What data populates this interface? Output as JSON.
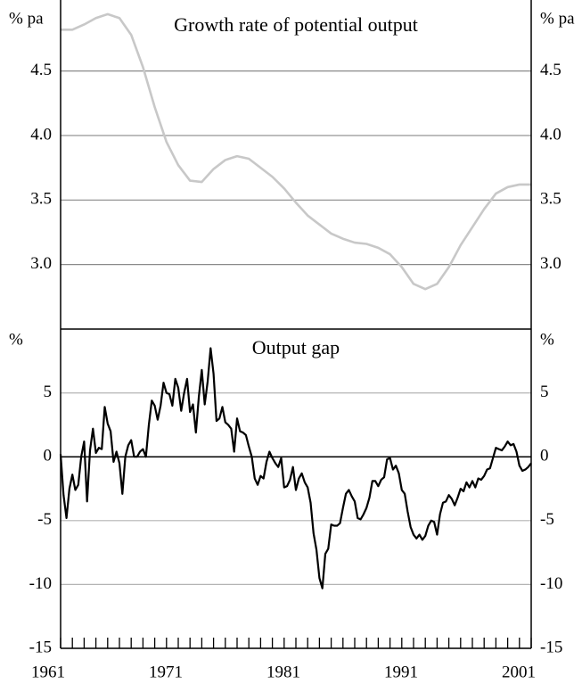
{
  "chart_data": [
    {
      "type": "line",
      "title": "Growth rate of potential output",
      "y_unit": "% pa",
      "color": "#c8c8c8",
      "x": [
        1961,
        1962,
        1963,
        1964,
        1965,
        1966,
        1967,
        1968,
        1969,
        1970,
        1971,
        1972,
        1973,
        1974,
        1975,
        1976,
        1977,
        1978,
        1979,
        1980,
        1981,
        1982,
        1983,
        1984,
        1985,
        1986,
        1987,
        1988,
        1989,
        1990,
        1991,
        1992,
        1993,
        1994,
        1995,
        1996,
        1997,
        1998,
        1999,
        2000,
        2001
      ],
      "values": [
        4.82,
        4.82,
        4.86,
        4.91,
        4.94,
        4.91,
        4.78,
        4.53,
        4.22,
        3.95,
        3.77,
        3.65,
        3.64,
        3.74,
        3.81,
        3.84,
        3.82,
        3.75,
        3.68,
        3.59,
        3.48,
        3.38,
        3.31,
        3.24,
        3.2,
        3.17,
        3.16,
        3.13,
        3.08,
        2.98,
        2.85,
        2.81,
        2.85,
        2.98,
        3.15,
        3.29,
        3.43,
        3.55,
        3.6,
        3.62,
        3.62
      ],
      "xlim": [
        1961,
        2001
      ],
      "ylim": [
        2.5,
        5.05
      ],
      "yticks": [
        {
          "value": 3,
          "label": "3.0"
        },
        {
          "value": 3.5,
          "label": "3.5"
        },
        {
          "value": 4,
          "label": "4.0"
        },
        {
          "value": 4.5,
          "label": "4.5"
        }
      ],
      "grid": true
    },
    {
      "type": "line",
      "title": "Output gap",
      "y_unit": "%",
      "color": "#000000",
      "x": [
        1961,
        1961.25,
        1961.5,
        1961.75,
        1962,
        1962.25,
        1962.5,
        1962.75,
        1963,
        1963.25,
        1963.5,
        1963.75,
        1964,
        1964.25,
        1964.5,
        1964.75,
        1965,
        1965.25,
        1965.5,
        1965.75,
        1966,
        1966.25,
        1966.5,
        1966.75,
        1967,
        1967.25,
        1967.5,
        1967.75,
        1968,
        1968.25,
        1968.5,
        1968.75,
        1969,
        1969.25,
        1969.5,
        1969.75,
        1970,
        1970.25,
        1970.5,
        1970.75,
        1971,
        1971.25,
        1971.5,
        1971.75,
        1972,
        1972.25,
        1972.5,
        1972.75,
        1973,
        1973.25,
        1973.5,
        1973.75,
        1974,
        1974.25,
        1974.5,
        1974.75,
        1975,
        1975.25,
        1975.5,
        1975.75,
        1976,
        1976.25,
        1976.5,
        1976.75,
        1977,
        1977.25,
        1977.5,
        1977.75,
        1978,
        1978.25,
        1978.5,
        1978.75,
        1979,
        1979.25,
        1979.5,
        1979.75,
        1980,
        1980.25,
        1980.5,
        1980.75,
        1981,
        1981.25,
        1981.5,
        1981.75,
        1982,
        1982.25,
        1982.5,
        1982.75,
        1983,
        1983.25,
        1983.5,
        1983.75,
        1984,
        1984.25,
        1984.5,
        1984.75,
        1985,
        1985.25,
        1985.5,
        1985.75,
        1986,
        1986.25,
        1986.5,
        1986.75,
        1987,
        1987.25,
        1987.5,
        1987.75,
        1988,
        1988.25,
        1988.5,
        1988.75,
        1989,
        1989.25,
        1989.5,
        1989.75,
        1990,
        1990.25,
        1990.5,
        1990.75,
        1991,
        1991.25,
        1991.5,
        1991.75,
        1992,
        1992.25,
        1992.5,
        1992.75,
        1993,
        1993.25,
        1993.5,
        1993.75,
        1994,
        1994.25,
        1994.5,
        1994.75,
        1995,
        1995.25,
        1995.5,
        1995.75,
        1996,
        1996.25,
        1996.5,
        1996.75,
        1997,
        1997.25,
        1997.5,
        1997.75,
        1998,
        1998.25,
        1998.5,
        1998.75,
        1999,
        1999.25,
        1999.5,
        1999.75,
        2000,
        2000.25,
        2000.5,
        2000.75,
        2001
      ],
      "values": [
        0.2,
        -3,
        -4.8,
        -2.5,
        -1.4,
        -2.6,
        -2.2,
        0,
        1.2,
        -3.5,
        0.5,
        2.2,
        0.3,
        0.7,
        0.6,
        3.9,
        2.6,
        2.0,
        -0.4,
        0.4,
        -0.5,
        -2.9,
        0,
        0.9,
        1.3,
        0,
        0,
        0.4,
        0.6,
        0,
        2.5,
        4.4,
        4.0,
        2.9,
        4.0,
        5.8,
        5.0,
        4.9,
        4.0,
        6.1,
        5.4,
        3.6,
        5.0,
        6.1,
        3.5,
        4.1,
        1.9,
        4.7,
        6.8,
        4.1,
        5.9,
        8.5,
        6.5,
        2.8,
        3.0,
        3.9,
        2.7,
        2.5,
        2.2,
        0.4,
        3.0,
        2.0,
        1.9,
        1.7,
        0.8,
        0,
        -1.7,
        -2.2,
        -1.5,
        -1.7,
        -0.4,
        0.4,
        -0.1,
        -0.5,
        -0.8,
        -0.1,
        -2.4,
        -2.3,
        -1.8,
        -0.8,
        -2.6,
        -1.7,
        -1.3,
        -2.0,
        -2.4,
        -3.6,
        -6,
        -7.3,
        -9.5,
        -10.3,
        -7.6,
        -7.2,
        -5.3,
        -5.4,
        -5.4,
        -5.2,
        -4,
        -2.9,
        -2.6,
        -3.1,
        -3.5,
        -4.8,
        -4.9,
        -4.5,
        -4.0,
        -3.2,
        -1.9,
        -1.9,
        -2.3,
        -1.8,
        -1.6,
        -0.2,
        -0.1,
        -1.0,
        -0.7,
        -1.3,
        -2.6,
        -2.9,
        -4.3,
        -5.5,
        -6.1,
        -6.4,
        -6.1,
        -6.5,
        -6.2,
        -5.4,
        -5.0,
        -5.1,
        -6.1,
        -4.5,
        -3.6,
        -3.5,
        -3.0,
        -3.3,
        -3.8,
        -3.2,
        -2.5,
        -2.7,
        -2.0,
        -2.4,
        -1.9,
        -2.4,
        -1.7,
        -1.8,
        -1.5,
        -1.0,
        -0.9,
        -0.1,
        0.7,
        0.6,
        0.5,
        0.8,
        1.2,
        0.9,
        1.0,
        0.4,
        -0.7,
        -1.1,
        -1.0,
        -0.8,
        -0.5
      ],
      "xlim": [
        1961,
        2001
      ],
      "ylim": [
        -15,
        10
      ],
      "xticks": [
        1961,
        1971,
        1981,
        1991,
        2001
      ],
      "xminor_ticks": [
        1962,
        1963,
        1964,
        1965,
        1966,
        1967,
        1968,
        1969,
        1970,
        1972,
        1973,
        1974,
        1975,
        1976,
        1977,
        1978,
        1979,
        1980,
        1982,
        1983,
        1984,
        1985,
        1986,
        1987,
        1988,
        1989,
        1990,
        1992,
        1993,
        1994,
        1995,
        1996,
        1997,
        1998,
        1999,
        2000
      ],
      "yticks": [
        -15,
        -10,
        -5,
        0,
        5
      ],
      "grid": true,
      "zero_line": true
    }
  ]
}
